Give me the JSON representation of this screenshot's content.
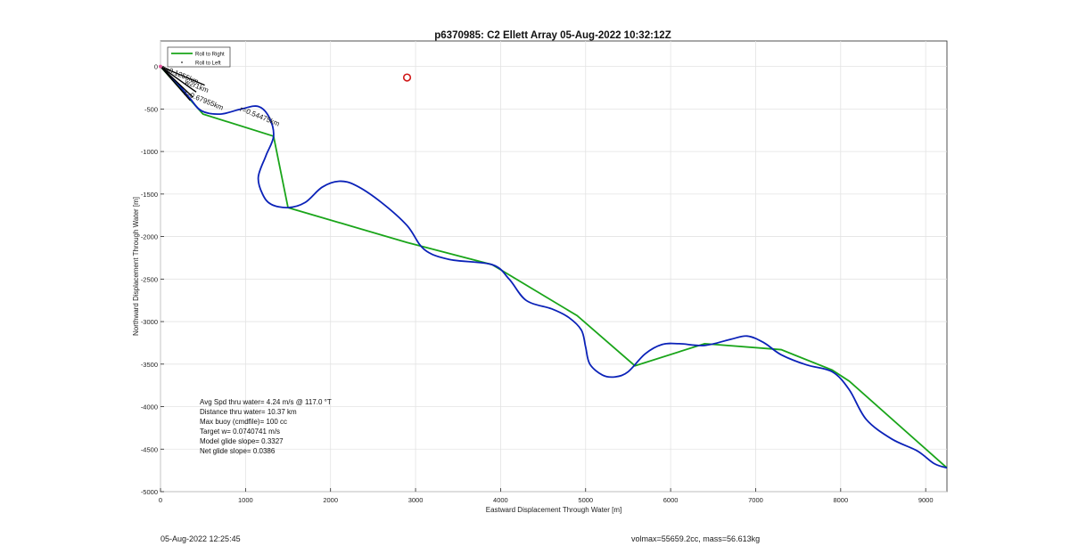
{
  "chart_data": {
    "type": "line",
    "title": "p6370985: C2 Ellett Array 05-Aug-2022 10:32:12Z",
    "xlabel": "Eastward Displacement Through Water [m]",
    "ylabel": "Northward Displacement Through Water [m]",
    "xlim": [
      0,
      9250
    ],
    "ylim": [
      -5000,
      300
    ],
    "xticks": [
      0,
      1000,
      2000,
      3000,
      4000,
      5000,
      6000,
      7000,
      8000,
      9000
    ],
    "yticks": [
      0,
      -500,
      -1000,
      -1500,
      -2000,
      -2500,
      -3000,
      -3500,
      -4000,
      -4500,
      -5000
    ],
    "grid": true,
    "legend_position": "top-left",
    "legend": [
      "Roll to Right",
      "Roll to Left"
    ],
    "series": [
      {
        "name": "Roll to Right",
        "color": "#1aa51a",
        "x": [
          0,
          500,
          1330,
          1500,
          2900,
          3900,
          4900,
          5580,
          6400,
          7300,
          7900,
          8100,
          9250
        ],
        "y": [
          0,
          -560,
          -820,
          -1660,
          -2070,
          -2330,
          -2930,
          -3520,
          -3260,
          -3330,
          -3570,
          -3700,
          -4720
        ]
      },
      {
        "name": "track",
        "color": "#0b22b8",
        "x": [
          0,
          200,
          350,
          480,
          700,
          950,
          1150,
          1280,
          1330,
          1240,
          1150,
          1200,
          1300,
          1500,
          1700,
          1900,
          2100,
          2300,
          2600,
          2900,
          3100,
          3400,
          3900,
          4100,
          4300,
          4600,
          4800,
          4950,
          5000,
          5050,
          5200,
          5350,
          5500,
          5700,
          5900,
          6100,
          6400,
          6700,
          6900,
          7100,
          7300,
          7600,
          7900,
          8100,
          8300,
          8600,
          8900,
          9100,
          9250
        ],
        "y": [
          0,
          -200,
          -380,
          -520,
          -560,
          -500,
          -470,
          -600,
          -820,
          -1050,
          -1300,
          -1500,
          -1620,
          -1660,
          -1600,
          -1420,
          -1350,
          -1400,
          -1600,
          -1870,
          -2150,
          -2270,
          -2330,
          -2500,
          -2750,
          -2850,
          -2950,
          -3100,
          -3300,
          -3500,
          -3630,
          -3650,
          -3590,
          -3380,
          -3270,
          -3260,
          -3280,
          -3210,
          -3170,
          -3250,
          -3390,
          -3510,
          -3590,
          -3800,
          -4150,
          -4380,
          -4520,
          -4670,
          -4720
        ]
      },
      {
        "name": "",
        "color": "#000000",
        "x": [
          0,
          520,
          0,
          420,
          0,
          380,
          0,
          350
        ],
        "y": [
          0,
          -220,
          0,
          -300,
          0,
          -360,
          0,
          -400
        ]
      }
    ],
    "annotations": [
      {
        "text": "r=0.67955km",
        "x": 270,
        "y": -330
      },
      {
        "text": "r=0.54475km",
        "x": 930,
        "y": -520
      },
      {
        "text": "r=0.1255km",
        "x": 20,
        "y": -40
      },
      {
        "text": "w2r1km",
        "x": 280,
        "y": -200
      }
    ],
    "markers": [
      {
        "type": "circle",
        "color": "#d01818",
        "x": 2900,
        "y": -130
      },
      {
        "type": "point",
        "color": "#e0559a",
        "x": 0,
        "y": 0
      }
    ],
    "stats": [
      "Avg Spd thru water=  4.24 m/s @ 117.0 °T",
      "Distance thru water= 10.37 km",
      "Max buoy (cmdfile)= 100 cc",
      "Target w= 0.0740741 m/s",
      "Model glide slope= 0.3327",
      "Net glide slope= 0.0386"
    ]
  },
  "footer": {
    "left": "05-Aug-2022 12:25:45",
    "right": "volmax=55659.2cc, mass=56.613kg"
  }
}
